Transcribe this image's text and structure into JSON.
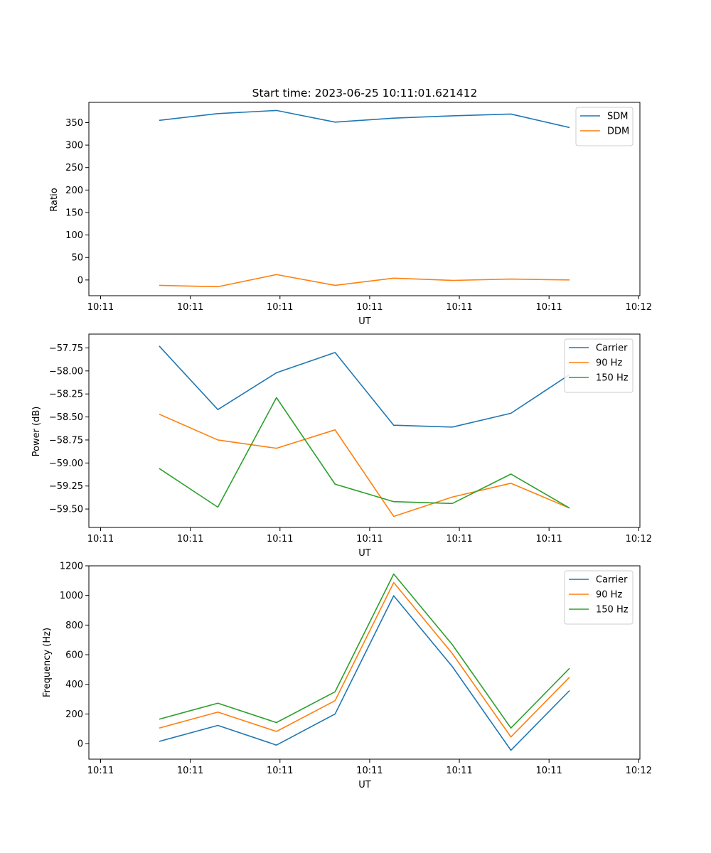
{
  "chart_data": [
    {
      "type": "line",
      "title": "Start time: 2023-06-25 10:11:01.621412",
      "xlabel": "UT",
      "ylabel": "Ratio",
      "ylim": [
        -35,
        395
      ],
      "xlim": [
        -0.2,
        9.2
      ],
      "x": [
        1,
        2,
        3,
        4,
        5,
        6,
        7,
        8
      ],
      "xticks": [
        0,
        1.53,
        3.06,
        4.59,
        6.12,
        7.65,
        9.18
      ],
      "xticklabels": [
        "10:11",
        "10:11",
        "10:11",
        "10:11",
        "10:11",
        "10:11",
        "10:12"
      ],
      "yticks": [
        0,
        50,
        100,
        150,
        200,
        250,
        300,
        350
      ],
      "yticklabels": [
        "0",
        "50",
        "100",
        "150",
        "200",
        "250",
        "300",
        "350"
      ],
      "legend_position": "top-right",
      "grid": false,
      "series": [
        {
          "name": "SDM",
          "color": "#1f77b4",
          "values": [
            355,
            370,
            377,
            351,
            360,
            365,
            369,
            339
          ]
        },
        {
          "name": "DDM",
          "color": "#ff7f0e",
          "values": [
            -12,
            -15,
            12,
            -12,
            4,
            -1,
            2,
            0
          ]
        }
      ]
    },
    {
      "type": "line",
      "title": "",
      "xlabel": "UT",
      "ylabel": "Power (dB)",
      "ylim": [
        -59.7,
        -57.6
      ],
      "xlim": [
        -0.2,
        9.2
      ],
      "x": [
        1,
        2,
        3,
        4,
        5,
        6,
        7,
        8
      ],
      "xticks": [
        0,
        1.53,
        3.06,
        4.59,
        6.12,
        7.65,
        9.18
      ],
      "xticklabels": [
        "10:11",
        "10:11",
        "10:11",
        "10:11",
        "10:11",
        "10:11",
        "10:12"
      ],
      "yticks": [
        -59.5,
        -59.25,
        -59.0,
        -58.75,
        -58.5,
        -58.25,
        -58.0,
        -57.75
      ],
      "yticklabels": [
        "−59.50",
        "−59.25",
        "−59.00",
        "−58.75",
        "−58.50",
        "−58.25",
        "−58.00",
        "−57.75"
      ],
      "legend_position": "top-right",
      "grid": false,
      "series": [
        {
          "name": "Carrier",
          "color": "#1f77b4",
          "values": [
            -57.73,
            -58.42,
            -58.02,
            -57.8,
            -58.59,
            -58.61,
            -58.46,
            -58.04
          ]
        },
        {
          "name": "90 Hz",
          "color": "#ff7f0e",
          "values": [
            -58.47,
            -58.75,
            -58.84,
            -58.64,
            -59.58,
            -59.37,
            -59.22,
            -59.49
          ]
        },
        {
          "name": "150 Hz",
          "color": "#2ca02c",
          "values": [
            -59.06,
            -59.48,
            -58.29,
            -59.23,
            -59.42,
            -59.44,
            -59.12,
            -59.49
          ]
        }
      ]
    },
    {
      "type": "line",
      "title": "",
      "xlabel": "UT",
      "ylabel": "Frequency (Hz)",
      "ylim": [
        -105,
        1200
      ],
      "xlim": [
        -0.2,
        9.2
      ],
      "x": [
        1,
        2,
        3,
        4,
        5,
        6,
        7,
        8
      ],
      "xticks": [
        0,
        1.53,
        3.06,
        4.59,
        6.12,
        7.65,
        9.18
      ],
      "xticklabels": [
        "10:11",
        "10:11",
        "10:11",
        "10:11",
        "10:11",
        "10:11",
        "10:12"
      ],
      "yticks": [
        0,
        200,
        400,
        600,
        800,
        1000,
        1200
      ],
      "yticklabels": [
        "0",
        "200",
        "400",
        "600",
        "800",
        "1000",
        "1200"
      ],
      "legend_position": "top-right",
      "grid": false,
      "series": [
        {
          "name": "Carrier",
          "color": "#1f77b4",
          "values": [
            15,
            123,
            -10,
            200,
            998,
            520,
            -45,
            358
          ]
        },
        {
          "name": "90 Hz",
          "color": "#ff7f0e",
          "values": [
            105,
            213,
            82,
            290,
            1087,
            608,
            45,
            448
          ]
        },
        {
          "name": "150 Hz",
          "color": "#2ca02c",
          "values": [
            165,
            273,
            142,
            350,
            1145,
            668,
            105,
            508
          ]
        }
      ]
    }
  ]
}
